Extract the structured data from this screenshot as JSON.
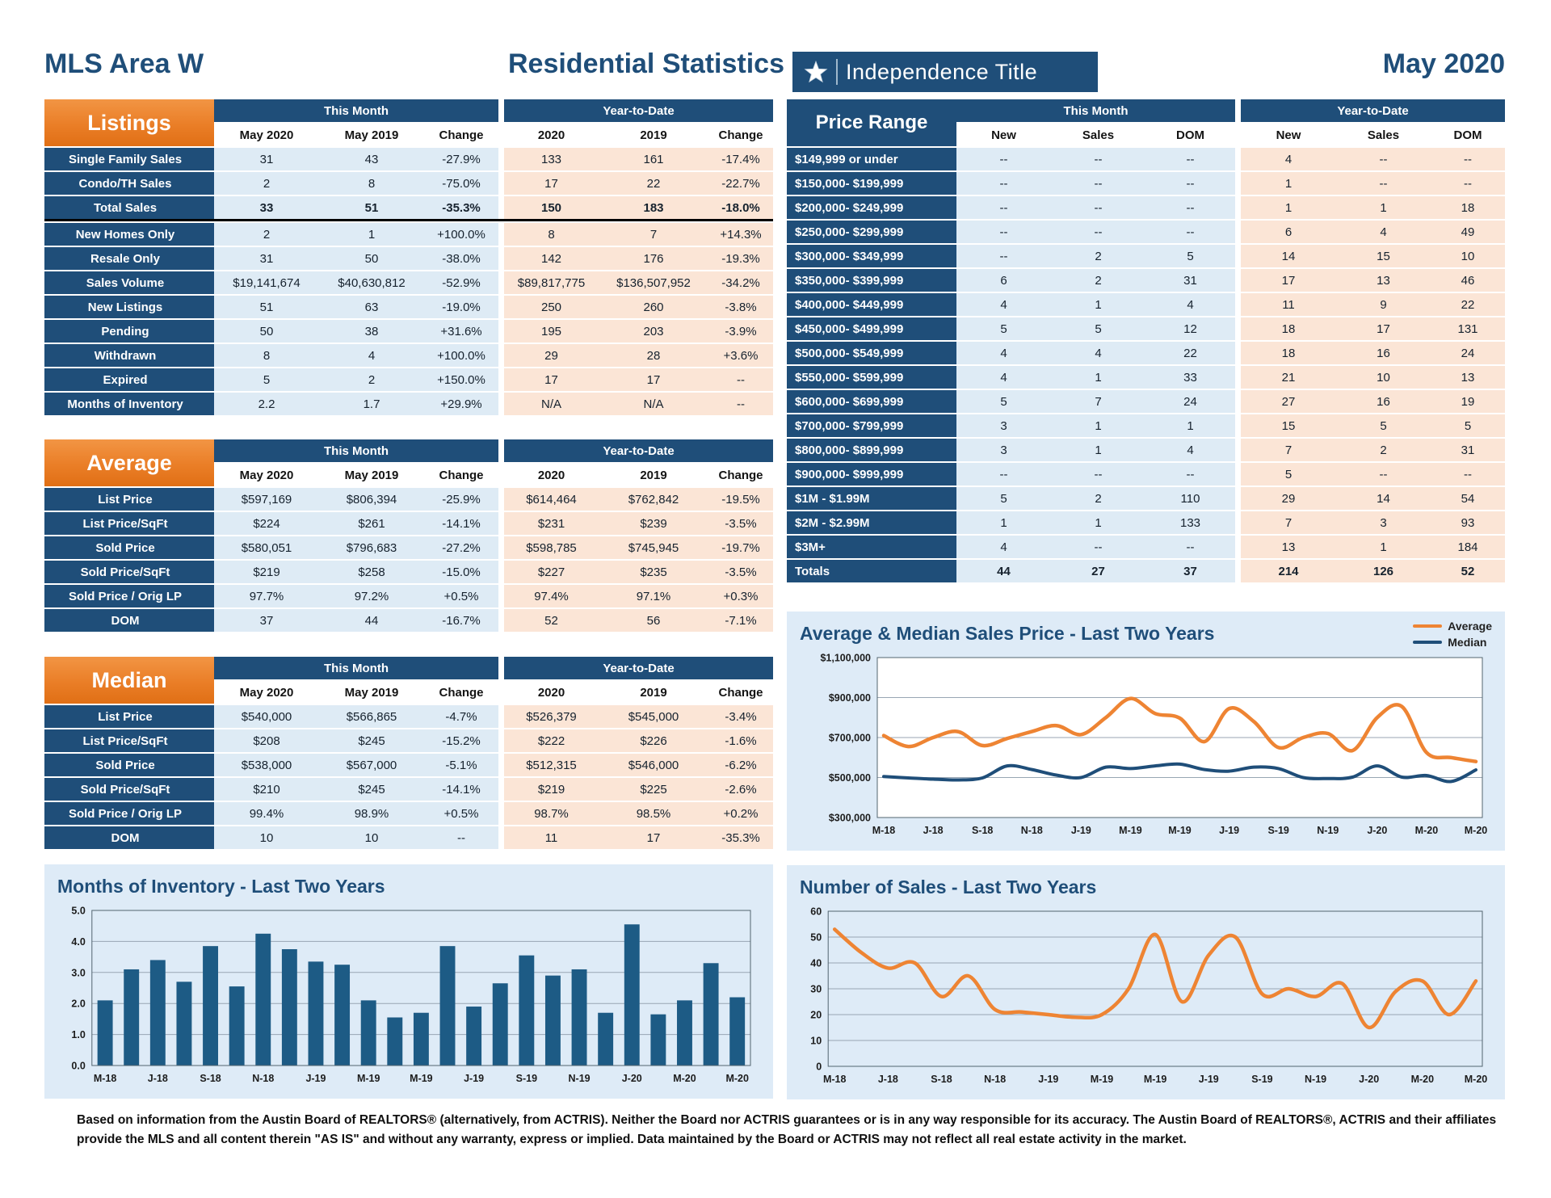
{
  "header": {
    "area_title": "MLS Area W",
    "report_title": "Residential Statistics",
    "logo_text": "Independence Title",
    "date": "May 2020"
  },
  "stat_tables": [
    {
      "id": "listings",
      "section_label": "Listings",
      "group_headers": [
        "This Month",
        "Year-to-Date"
      ],
      "col_headers": [
        "May 2020",
        "May 2019",
        "Change",
        "2020",
        "2019",
        "Change"
      ],
      "rows": [
        {
          "label": "Single Family Sales",
          "values": [
            "31",
            "43",
            "-27.9%",
            "133",
            "161",
            "-17.4%"
          ]
        },
        {
          "label": "Condo/TH Sales",
          "values": [
            "2",
            "8",
            "-75.0%",
            "17",
            "22",
            "-22.7%"
          ]
        },
        {
          "label": "Total Sales",
          "bold": true,
          "underline": true,
          "values": [
            "33",
            "51",
            "-35.3%",
            "150",
            "183",
            "-18.0%"
          ]
        },
        {
          "label": "New Homes Only",
          "values": [
            "2",
            "1",
            "+100.0%",
            "8",
            "7",
            "+14.3%"
          ]
        },
        {
          "label": "Resale Only",
          "values": [
            "31",
            "50",
            "-38.0%",
            "142",
            "176",
            "-19.3%"
          ]
        },
        {
          "label": "Sales Volume",
          "values": [
            "$19,141,674",
            "$40,630,812",
            "-52.9%",
            "$89,817,775",
            "$136,507,952",
            "-34.2%"
          ]
        },
        {
          "label": "New Listings",
          "values": [
            "51",
            "63",
            "-19.0%",
            "250",
            "260",
            "-3.8%"
          ]
        },
        {
          "label": "Pending",
          "values": [
            "50",
            "38",
            "+31.6%",
            "195",
            "203",
            "-3.9%"
          ]
        },
        {
          "label": "Withdrawn",
          "values": [
            "8",
            "4",
            "+100.0%",
            "29",
            "28",
            "+3.6%"
          ]
        },
        {
          "label": "Expired",
          "values": [
            "5",
            "2",
            "+150.0%",
            "17",
            "17",
            "--"
          ]
        },
        {
          "label": "Months of Inventory",
          "values": [
            "2.2",
            "1.7",
            "+29.9%",
            "N/A",
            "N/A",
            "--"
          ]
        }
      ]
    },
    {
      "id": "average",
      "section_label": "Average",
      "group_headers": [
        "This Month",
        "Year-to-Date"
      ],
      "col_headers": [
        "May 2020",
        "May 2019",
        "Change",
        "2020",
        "2019",
        "Change"
      ],
      "rows": [
        {
          "label": "List Price",
          "values": [
            "$597,169",
            "$806,394",
            "-25.9%",
            "$614,464",
            "$762,842",
            "-19.5%"
          ]
        },
        {
          "label": "List Price/SqFt",
          "values": [
            "$224",
            "$261",
            "-14.1%",
            "$231",
            "$239",
            "-3.5%"
          ]
        },
        {
          "label": "Sold Price",
          "values": [
            "$580,051",
            "$796,683",
            "-27.2%",
            "$598,785",
            "$745,945",
            "-19.7%"
          ]
        },
        {
          "label": "Sold Price/SqFt",
          "values": [
            "$219",
            "$258",
            "-15.0%",
            "$227",
            "$235",
            "-3.5%"
          ]
        },
        {
          "label": "Sold Price / Orig LP",
          "values": [
            "97.7%",
            "97.2%",
            "+0.5%",
            "97.4%",
            "97.1%",
            "+0.3%"
          ]
        },
        {
          "label": "DOM",
          "values": [
            "37",
            "44",
            "-16.7%",
            "52",
            "56",
            "-7.1%"
          ]
        }
      ]
    },
    {
      "id": "median",
      "section_label": "Median",
      "group_headers": [
        "This Month",
        "Year-to-Date"
      ],
      "col_headers": [
        "May 2020",
        "May 2019",
        "Change",
        "2020",
        "2019",
        "Change"
      ],
      "rows": [
        {
          "label": "List Price",
          "values": [
            "$540,000",
            "$566,865",
            "-4.7%",
            "$526,379",
            "$545,000",
            "-3.4%"
          ]
        },
        {
          "label": "List Price/SqFt",
          "values": [
            "$208",
            "$245",
            "-15.2%",
            "$222",
            "$226",
            "-1.6%"
          ]
        },
        {
          "label": "Sold Price",
          "values": [
            "$538,000",
            "$567,000",
            "-5.1%",
            "$512,315",
            "$546,000",
            "-6.2%"
          ]
        },
        {
          "label": "Sold Price/SqFt",
          "values": [
            "$210",
            "$245",
            "-14.1%",
            "$219",
            "$225",
            "-2.6%"
          ]
        },
        {
          "label": "Sold Price / Orig LP",
          "values": [
            "99.4%",
            "98.9%",
            "+0.5%",
            "98.7%",
            "98.5%",
            "+0.2%"
          ]
        },
        {
          "label": "DOM",
          "values": [
            "10",
            "10",
            "--",
            "11",
            "17",
            "-35.3%"
          ]
        }
      ]
    }
  ],
  "price_table": {
    "id": "price-range",
    "section_label": "Price Range",
    "group_headers": [
      "This Month",
      "Year-to-Date"
    ],
    "col_headers": [
      "New",
      "Sales",
      "DOM",
      "New",
      "Sales",
      "DOM"
    ],
    "rows": [
      {
        "label": "$149,999 or under",
        "values": [
          "--",
          "--",
          "--",
          "4",
          "--",
          "--"
        ]
      },
      {
        "label": "$150,000- $199,999",
        "values": [
          "--",
          "--",
          "--",
          "1",
          "--",
          "--"
        ]
      },
      {
        "label": "$200,000- $249,999",
        "values": [
          "--",
          "--",
          "--",
          "1",
          "1",
          "18"
        ]
      },
      {
        "label": "$250,000- $299,999",
        "values": [
          "--",
          "--",
          "--",
          "6",
          "4",
          "49"
        ]
      },
      {
        "label": "$300,000- $349,999",
        "values": [
          "--",
          "2",
          "5",
          "14",
          "15",
          "10"
        ]
      },
      {
        "label": "$350,000- $399,999",
        "values": [
          "6",
          "2",
          "31",
          "17",
          "13",
          "46"
        ]
      },
      {
        "label": "$400,000- $449,999",
        "values": [
          "4",
          "1",
          "4",
          "11",
          "9",
          "22"
        ]
      },
      {
        "label": "$450,000- $499,999",
        "values": [
          "5",
          "5",
          "12",
          "18",
          "17",
          "131"
        ]
      },
      {
        "label": "$500,000- $549,999",
        "values": [
          "4",
          "4",
          "22",
          "18",
          "16",
          "24"
        ]
      },
      {
        "label": "$550,000- $599,999",
        "values": [
          "4",
          "1",
          "33",
          "21",
          "10",
          "13"
        ]
      },
      {
        "label": "$600,000- $699,999",
        "values": [
          "5",
          "7",
          "24",
          "27",
          "16",
          "19"
        ]
      },
      {
        "label": "$700,000- $799,999",
        "values": [
          "3",
          "1",
          "1",
          "15",
          "5",
          "5"
        ]
      },
      {
        "label": "$800,000- $899,999",
        "values": [
          "3",
          "1",
          "4",
          "7",
          "2",
          "31"
        ]
      },
      {
        "label": "$900,000- $999,999",
        "values": [
          "--",
          "--",
          "--",
          "5",
          "--",
          "--"
        ]
      },
      {
        "label": "$1M - $1.99M",
        "values": [
          "5",
          "2",
          "110",
          "29",
          "14",
          "54"
        ]
      },
      {
        "label": "$2M - $2.99M",
        "values": [
          "1",
          "1",
          "133",
          "7",
          "3",
          "93"
        ]
      },
      {
        "label": "$3M+",
        "values": [
          "4",
          "--",
          "--",
          "13",
          "1",
          "184"
        ]
      },
      {
        "label": "Totals",
        "bold": true,
        "values": [
          "44",
          "27",
          "37",
          "214",
          "126",
          "52"
        ]
      }
    ]
  },
  "chart_data": [
    {
      "id": "price_chart",
      "type": "line",
      "title": "Average & Median Sales Price - Last Two Years",
      "legend_position": "top-right",
      "grid": true,
      "plot_bg": "#ffffff",
      "ylim": [
        300000,
        1100000
      ],
      "y_ticks": [
        "$300,000",
        "$500,000",
        "$700,000",
        "$900,000",
        "$1,100,000"
      ],
      "x_tick_labels": [
        "M-18",
        "J-18",
        "S-18",
        "N-18",
        "J-19",
        "M-19",
        "M-19",
        "J-19",
        "S-19",
        "N-19",
        "J-20",
        "M-20",
        "M-20"
      ],
      "series": [
        {
          "name": "Average",
          "color": "#EE8433",
          "values": [
            710000,
            655000,
            700000,
            730000,
            660000,
            695000,
            730000,
            760000,
            715000,
            800000,
            895000,
            820000,
            797000,
            680000,
            845000,
            780000,
            650000,
            700000,
            720000,
            635000,
            800000,
            855000,
            625000,
            600000,
            580000
          ]
        },
        {
          "name": "Median",
          "color": "#1F4E79",
          "values": [
            505000,
            498000,
            492000,
            488000,
            498000,
            558000,
            540000,
            512000,
            500000,
            552000,
            545000,
            558000,
            567000,
            540000,
            532000,
            552000,
            545000,
            500000,
            495000,
            502000,
            558000,
            502000,
            510000,
            480000,
            538000
          ]
        }
      ]
    },
    {
      "id": "inventory_chart",
      "type": "bar",
      "title": "Months of Inventory - Last Two Years",
      "grid": true,
      "bar_color": "#1D5B85",
      "ylim": [
        0,
        5
      ],
      "y_ticks": [
        "0.0",
        "1.0",
        "2.0",
        "3.0",
        "4.0",
        "5.0"
      ],
      "x_tick_labels": [
        "M-18",
        "J-18",
        "S-18",
        "N-18",
        "J-19",
        "M-19",
        "M-19",
        "J-19",
        "S-19",
        "N-19",
        "J-20",
        "M-20",
        "M-20"
      ],
      "values": [
        2.1,
        3.1,
        3.4,
        2.7,
        3.85,
        2.55,
        4.25,
        3.75,
        3.35,
        3.25,
        2.1,
        1.55,
        1.7,
        3.85,
        1.9,
        2.65,
        3.55,
        2.9,
        3.1,
        1.7,
        4.55,
        1.65,
        2.1,
        3.3,
        2.2
      ]
    },
    {
      "id": "sales_chart",
      "type": "line",
      "title": "Number of Sales - Last Two Years",
      "grid": true,
      "ylim": [
        0,
        60
      ],
      "y_ticks": [
        "0",
        "10",
        "20",
        "30",
        "40",
        "50",
        "60"
      ],
      "x_tick_labels": [
        "M-18",
        "J-18",
        "S-18",
        "N-18",
        "J-19",
        "M-19",
        "M-19",
        "J-19",
        "S-19",
        "N-19",
        "J-20",
        "M-20",
        "M-20"
      ],
      "series": [
        {
          "name": "Sales",
          "color": "#EE8433",
          "values": [
            53,
            44,
            38,
            40,
            27,
            35,
            22,
            21,
            20,
            19,
            20,
            30,
            51,
            25,
            43,
            50,
            28,
            30,
            27,
            32,
            15,
            29,
            33,
            20,
            33
          ]
        }
      ]
    }
  ],
  "footer": {
    "disclaimer": "Based on information from the Austin Board of REALTORS® (alternatively, from ACTRIS). Neither the Board nor ACTRIS guarantees or is in any way responsible for its accuracy. The Austin Board of REALTORS®, ACTRIS and their affiliates provide the MLS and all content therein \"AS IS\" and without any warranty, express or implied. Data maintained by the Board or ACTRIS may not reflect all real estate activity in the market."
  }
}
